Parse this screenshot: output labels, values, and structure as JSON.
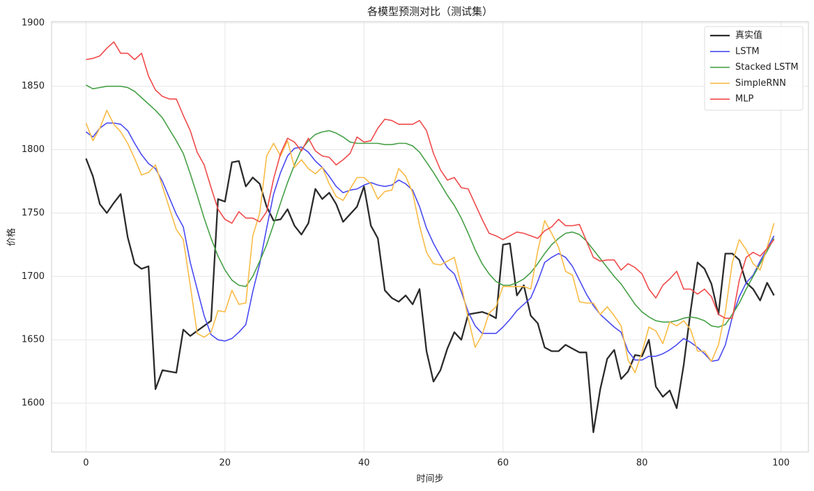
{
  "chart_data": {
    "type": "line",
    "title": "各模型预测对比（测试集）",
    "x_label": "时间步",
    "y_label": "价格",
    "x": [
      0,
      1,
      2,
      3,
      4,
      5,
      6,
      7,
      8,
      9,
      10,
      11,
      12,
      13,
      14,
      15,
      16,
      17,
      18,
      19,
      20,
      21,
      22,
      23,
      24,
      25,
      26,
      27,
      28,
      29,
      30,
      31,
      32,
      33,
      34,
      35,
      36,
      37,
      38,
      39,
      40,
      41,
      42,
      43,
      44,
      45,
      46,
      47,
      48,
      49,
      50,
      51,
      52,
      53,
      54,
      55,
      56,
      57,
      58,
      59,
      60,
      61,
      62,
      63,
      64,
      65,
      66,
      67,
      68,
      69,
      70,
      71,
      72,
      73,
      74,
      75,
      76,
      77,
      78,
      79,
      80,
      81,
      82,
      83,
      84,
      85,
      86,
      87,
      88,
      89,
      90,
      91,
      92,
      93,
      94,
      95,
      96,
      97,
      98,
      99
    ],
    "xlim": [
      -4.95,
      103.95
    ],
    "xticks": [
      0,
      20,
      40,
      60,
      80,
      100
    ],
    "ylim": [
      1561.5,
      1901
    ],
    "yticks": [
      1600,
      1650,
      1700,
      1750,
      1800,
      1850,
      1900
    ],
    "grid": true,
    "legend": "upper right",
    "series": [
      {
        "name": "真实值",
        "color": "#2b2b2b",
        "linewidth": 2.3,
        "values": [
          1793,
          1779,
          1757,
          1750,
          1758,
          1765,
          1731,
          1710,
          1706,
          1708,
          1611,
          1626,
          1625,
          1624,
          1658,
          1653,
          1657,
          1661,
          1665,
          1761,
          1759,
          1790,
          1791,
          1771,
          1778,
          1773,
          1755,
          1744,
          1745,
          1753,
          1740,
          1733,
          1742,
          1769,
          1761,
          1766,
          1757,
          1743,
          1749,
          1755,
          1771,
          1740,
          1730,
          1689,
          1683,
          1680,
          1685,
          1678,
          1690,
          1641,
          1617,
          1626,
          1643,
          1656,
          1650,
          1670,
          1671,
          1672,
          1670,
          1667,
          1725,
          1726,
          1685,
          1693,
          1669,
          1663,
          1644,
          1641,
          1641,
          1646,
          1643,
          1640,
          1640,
          1577,
          1611,
          1635,
          1642,
          1619,
          1625,
          1638,
          1637,
          1650,
          1613,
          1605,
          1610,
          1596,
          1630,
          1673,
          1711,
          1706,
          1694,
          1670,
          1718,
          1718,
          1713,
          1695,
          1690,
          1681,
          1695,
          1685
        ]
      },
      {
        "name": "LSTM",
        "color": "#4a4af2",
        "linewidth": 1.6,
        "values": [
          1814,
          1810,
          1817,
          1821,
          1821,
          1820,
          1815,
          1805,
          1796,
          1789,
          1785,
          1775,
          1762,
          1749,
          1739,
          1711,
          1690,
          1669,
          1654,
          1650,
          1649,
          1651,
          1656,
          1662,
          1688,
          1710,
          1738,
          1765,
          1782,
          1795,
          1801,
          1802,
          1798,
          1791,
          1786,
          1779,
          1771,
          1766,
          1768,
          1769,
          1772,
          1774,
          1772,
          1771,
          1772,
          1776,
          1773,
          1768,
          1755,
          1738,
          1726,
          1716,
          1707,
          1702,
          1688,
          1672,
          1661,
          1655,
          1655,
          1655,
          1660,
          1666,
          1673,
          1678,
          1683,
          1696,
          1711,
          1715,
          1718,
          1715,
          1708,
          1697,
          1686,
          1677,
          1670,
          1665,
          1660,
          1656,
          1641,
          1634,
          1634,
          1637,
          1637,
          1639,
          1642,
          1646,
          1651,
          1648,
          1644,
          1639,
          1633,
          1634,
          1646,
          1668,
          1684,
          1695,
          1701,
          1712,
          1722,
          1732
        ]
      },
      {
        "name": "Stacked LSTM",
        "color": "#45a045",
        "linewidth": 1.6,
        "values": [
          1851,
          1848,
          1849,
          1850,
          1850,
          1850,
          1849,
          1846,
          1841,
          1836,
          1831,
          1825,
          1816,
          1807,
          1797,
          1781,
          1764,
          1746,
          1730,
          1716,
          1705,
          1697,
          1693,
          1692,
          1700,
          1712,
          1725,
          1741,
          1758,
          1774,
          1788,
          1800,
          1807,
          1812,
          1814,
          1815,
          1813,
          1810,
          1806,
          1805,
          1805,
          1805,
          1805,
          1804,
          1804,
          1805,
          1805,
          1803,
          1798,
          1790,
          1782,
          1773,
          1764,
          1756,
          1746,
          1734,
          1721,
          1710,
          1702,
          1696,
          1693,
          1693,
          1695,
          1698,
          1703,
          1710,
          1718,
          1725,
          1730,
          1734,
          1735,
          1733,
          1728,
          1721,
          1714,
          1707,
          1700,
          1694,
          1686,
          1678,
          1672,
          1668,
          1665,
          1664,
          1664,
          1665,
          1667,
          1668,
          1667,
          1665,
          1661,
          1660,
          1662,
          1670,
          1679,
          1690,
          1700,
          1710,
          1720,
          1730
        ]
      },
      {
        "name": "SimpleRNN",
        "color": "#f9bb45",
        "linewidth": 1.6,
        "values": [
          1821,
          1807,
          1817,
          1831,
          1820,
          1814,
          1805,
          1793,
          1780,
          1782,
          1788,
          1771,
          1754,
          1737,
          1729,
          1693,
          1655,
          1652,
          1656,
          1673,
          1672,
          1689,
          1678,
          1679,
          1732,
          1750,
          1795,
          1805,
          1795,
          1807,
          1786,
          1792,
          1785,
          1781,
          1786,
          1773,
          1763,
          1760,
          1769,
          1778,
          1778,
          1773,
          1761,
          1767,
          1768,
          1785,
          1779,
          1766,
          1740,
          1719,
          1710,
          1709,
          1712,
          1715,
          1693,
          1667,
          1644,
          1654,
          1671,
          1676,
          1692,
          1692,
          1692,
          1692,
          1690,
          1720,
          1744,
          1734,
          1723,
          1704,
          1701,
          1680,
          1679,
          1679,
          1670,
          1676,
          1669,
          1661,
          1634,
          1624,
          1640,
          1660,
          1657,
          1647,
          1664,
          1661,
          1665,
          1658,
          1641,
          1641,
          1633,
          1646,
          1672,
          1711,
          1729,
          1721,
          1710,
          1705,
          1723,
          1742
        ]
      },
      {
        "name": "MLP",
        "color": "#f04a4a",
        "linewidth": 1.6,
        "values": [
          1871,
          1872,
          1874,
          1880,
          1885,
          1876,
          1876,
          1871,
          1876,
          1858,
          1847,
          1842,
          1840,
          1840,
          1827,
          1815,
          1798,
          1788,
          1770,
          1753,
          1745,
          1742,
          1751,
          1746,
          1746,
          1743,
          1751,
          1777,
          1797,
          1809,
          1806,
          1799,
          1809,
          1799,
          1795,
          1794,
          1788,
          1792,
          1797,
          1810,
          1806,
          1807,
          1817,
          1824,
          1823,
          1820,
          1820,
          1820,
          1823,
          1815,
          1797,
          1784,
          1776,
          1778,
          1770,
          1769,
          1757,
          1745,
          1734,
          1732,
          1729,
          1732,
          1735,
          1734,
          1732,
          1730,
          1736,
          1739,
          1745,
          1740,
          1740,
          1741,
          1728,
          1715,
          1712,
          1713,
          1713,
          1705,
          1710,
          1707,
          1702,
          1690,
          1683,
          1693,
          1698,
          1704,
          1690,
          1690,
          1686,
          1690,
          1684,
          1670,
          1667,
          1667,
          1697,
          1715,
          1719,
          1716,
          1722,
          1729
        ]
      }
    ]
  }
}
